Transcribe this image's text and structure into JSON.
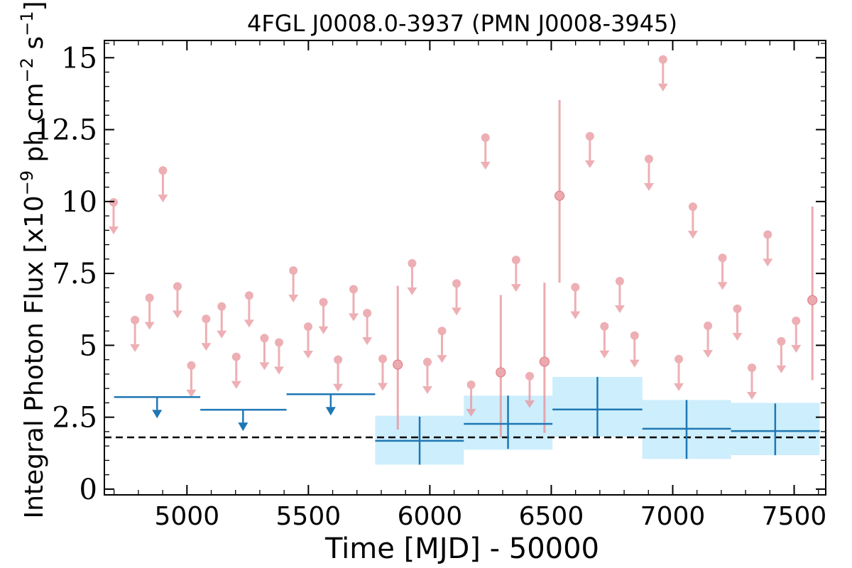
{
  "chart_data": {
    "type": "scatter",
    "title": "4FGL J0008.0-3937 (PMN J0008-3945)",
    "xlabel": "Time [MJD] - 50000",
    "ylabel": "Integral Photon Flux [x10^-9 ph cm^-2 s^-1]",
    "ylabel_parts": {
      "a": "Integral Photon Flux [x10",
      "b": "−9",
      "c": " ph cm",
      "d": "−2",
      "e": " s",
      "f": "−1",
      "g": "]"
    },
    "xlim": [
      4660,
      7630
    ],
    "ylim": [
      -0.2,
      15.6
    ],
    "x_ticks": [
      5000,
      5500,
      6000,
      6500,
      7000,
      7500
    ],
    "x_tick_labels": [
      "5000",
      "5500",
      "6000",
      "6500",
      "7000",
      "7500"
    ],
    "y_ticks": [
      0,
      2.5,
      5,
      7.5,
      10,
      12.5,
      15
    ],
    "y_tick_labels": [
      "0",
      "2.5",
      "5",
      "7.5",
      "10",
      "12.5",
      "15"
    ],
    "reference_line": {
      "y": 1.8,
      "style": "dashed",
      "color": "#000000"
    },
    "short_bin_upper_limits": {
      "color": "#e8959b",
      "points": [
        [
          4698,
          9.97
        ],
        [
          4786,
          5.88
        ],
        [
          4846,
          6.65
        ],
        [
          4901,
          11.08
        ],
        [
          4961,
          7.05
        ],
        [
          5018,
          4.3
        ],
        [
          5079,
          5.92
        ],
        [
          5143,
          6.35
        ],
        [
          5203,
          4.6
        ],
        [
          5256,
          6.73
        ],
        [
          5319,
          5.25
        ],
        [
          5379,
          5.1
        ],
        [
          5438,
          7.6
        ],
        [
          5499,
          5.65
        ],
        [
          5562,
          6.5
        ],
        [
          5622,
          4.5
        ],
        [
          5686,
          6.95
        ],
        [
          5742,
          6.12
        ],
        [
          5806,
          4.53
        ],
        [
          5927,
          7.85
        ],
        [
          5990,
          4.42
        ],
        [
          6050,
          5.5
        ],
        [
          6110,
          7.15
        ],
        [
          6170,
          3.63
        ],
        [
          6229,
          12.22
        ],
        [
          6355,
          7.97
        ],
        [
          6411,
          3.93
        ],
        [
          6599,
          7.02
        ],
        [
          6659,
          12.27
        ],
        [
          6719,
          5.66
        ],
        [
          6782,
          7.23
        ],
        [
          6843,
          5.34
        ],
        [
          6902,
          11.48
        ],
        [
          6960,
          14.94
        ],
        [
          7025,
          4.52
        ],
        [
          7083,
          9.82
        ],
        [
          7145,
          5.68
        ],
        [
          7205,
          8.04
        ],
        [
          7266,
          6.27
        ],
        [
          7326,
          4.22
        ],
        [
          7391,
          8.85
        ],
        [
          7447,
          5.14
        ],
        [
          7508,
          5.85
        ]
      ]
    },
    "short_bin_detections": {
      "color": "#e8959b",
      "points": [
        {
          "x": 5868,
          "y": 4.33,
          "ylo": 2.07,
          "yhi": 7.07
        },
        {
          "x": 6292,
          "y": 4.06,
          "ylo": 1.8,
          "yhi": 6.75
        },
        {
          "x": 6472,
          "y": 4.43,
          "ylo": 1.95,
          "yhi": 7.18
        },
        {
          "x": 6534,
          "y": 10.2,
          "ylo": 7.18,
          "yhi": 13.53
        },
        {
          "x": 7575,
          "y": 6.57,
          "ylo": 3.79,
          "yhi": 9.83
        }
      ]
    },
    "long_bin_upper_limits": {
      "color": "#1f77b4",
      "bins": [
        {
          "x0": 4700,
          "x1": 5055,
          "xc": 4877,
          "y": 3.2
        },
        {
          "x0": 5055,
          "x1": 5410,
          "xc": 5231,
          "y": 2.76
        },
        {
          "x0": 5410,
          "x1": 5775,
          "xc": 5592,
          "y": 3.3
        }
      ]
    },
    "long_bin_detections": {
      "color": "#1f77b4",
      "band_color": "#cdeefc",
      "bins": [
        {
          "x0": 5775,
          "x1": 6140,
          "xc": 5958,
          "y": 1.68,
          "ylo": 0.85,
          "yhi": 2.52,
          "band_lo": 0.85,
          "band_hi": 2.55
        },
        {
          "x0": 6140,
          "x1": 6505,
          "xc": 6322,
          "y": 2.27,
          "ylo": 1.4,
          "yhi": 3.25,
          "band_lo": 1.37,
          "band_hi": 3.25
        },
        {
          "x0": 6505,
          "x1": 6875,
          "xc": 6690,
          "y": 2.77,
          "ylo": 1.82,
          "yhi": 3.9,
          "band_lo": 1.82,
          "band_hi": 3.9
        },
        {
          "x0": 6875,
          "x1": 7240,
          "xc": 7057,
          "y": 2.1,
          "ylo": 1.05,
          "yhi": 3.1,
          "band_lo": 1.05,
          "band_hi": 3.1
        },
        {
          "x0": 7240,
          "x1": 7605,
          "xc": 7422,
          "y": 2.02,
          "ylo": 1.18,
          "yhi": 2.98,
          "band_lo": 1.18,
          "band_hi": 3.0
        }
      ]
    },
    "grid": false,
    "legend": "none"
  }
}
